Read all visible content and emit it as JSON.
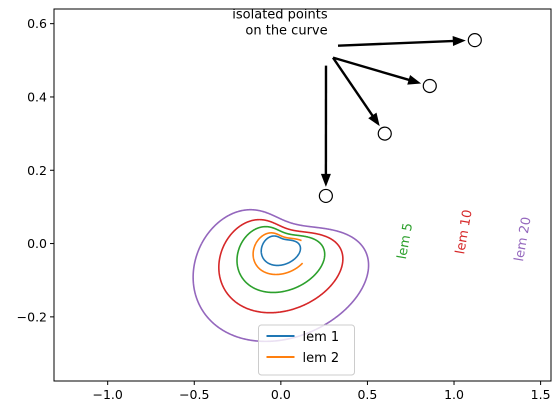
{
  "chart_data": {
    "type": "line",
    "title": "",
    "xlabel": "",
    "ylabel": "",
    "xlim": [
      -1.31,
      1.56
    ],
    "ylim": [
      -0.375,
      0.64
    ],
    "xticks": [
      {
        "value": -1.0,
        "label": "−1.0"
      },
      {
        "value": -0.5,
        "label": "−0.5"
      },
      {
        "value": 0.0,
        "label": "0.0"
      },
      {
        "value": 0.5,
        "label": "0.5"
      },
      {
        "value": 1.0,
        "label": "1.0"
      },
      {
        "value": 1.5,
        "label": "1.5"
      }
    ],
    "yticks": [
      {
        "value": -0.2,
        "label": "−0.2"
      },
      {
        "value": 0.0,
        "label": "0.0"
      },
      {
        "value": 0.2,
        "label": "0.2"
      },
      {
        "value": 0.4,
        "label": "0.4"
      },
      {
        "value": 0.6,
        "label": "0.6"
      }
    ],
    "grid": false,
    "legend": {
      "position": "lower-center",
      "entries": [
        {
          "name": "lem 1",
          "color": "#1f77b4"
        },
        {
          "name": "lem 2",
          "color": "#ff7f0e"
        }
      ]
    },
    "series": [
      {
        "key": "lem1",
        "name": "lem 1",
        "color": "#1f77b4",
        "scale": 1,
        "gap": [
          0,
          0
        ],
        "label": "",
        "label_x": 0,
        "label_y": 0
      },
      {
        "key": "lem2",
        "name": "lem 2",
        "color": "#ff7f0e",
        "scale": 2,
        "gap": [
          0.3,
          0.12
        ],
        "label": "",
        "label_x": 0,
        "label_y": 0
      },
      {
        "key": "lem5",
        "name": "lem 5",
        "color": "#2ca02c",
        "scale": 5,
        "gap": [
          0.55,
          0.45
        ],
        "label": "lem 5",
        "label_x": 0.74,
        "label_y": 0.005
      },
      {
        "key": "lem10",
        "name": "lem 10",
        "color": "#d62728",
        "scale": 10,
        "gap": [
          0.88,
          0.75
        ],
        "label": "lem 10",
        "label_x": 1.08,
        "label_y": 0.03
      },
      {
        "key": "lem20",
        "name": "lem 20",
        "color": "#9467bd",
        "scale": 20,
        "gap": [
          1.29,
          1.15
        ],
        "label": "lem 20",
        "label_x": 1.42,
        "label_y": 0.01
      }
    ],
    "isolated_points": [
      {
        "x": 0.26,
        "y": 0.13
      },
      {
        "x": 0.6,
        "y": 0.3
      },
      {
        "x": 0.86,
        "y": 0.43
      },
      {
        "x": 1.12,
        "y": 0.555
      }
    ],
    "annotation": {
      "line1": "isolated points",
      "line2": "on the curve",
      "x": 0.27,
      "y": 0.595,
      "arrow_start": {
        "x": 0.33,
        "y": 0.54
      }
    }
  }
}
